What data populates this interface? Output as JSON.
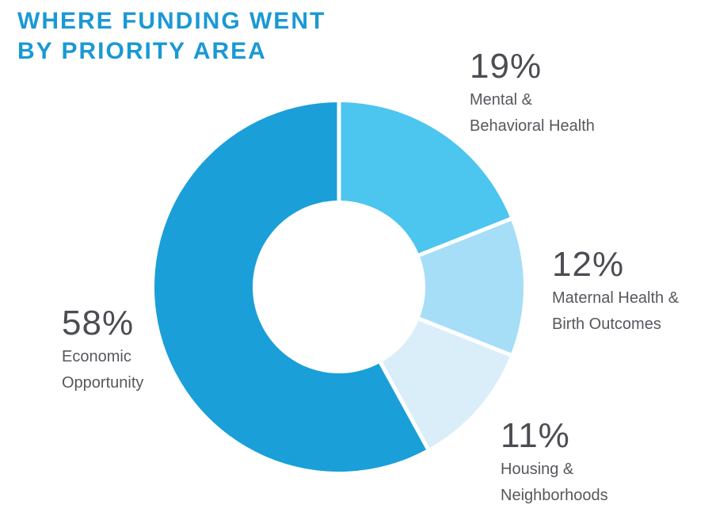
{
  "header": {
    "title_line1": "WHERE FUNDING WENT",
    "title_line2": "BY PRIORITY AREA"
  },
  "chart_data": {
    "type": "pie",
    "variant": "donut",
    "title": "WHERE FUNDING WENT BY PRIORITY AREA",
    "units": "percent of funding",
    "total": 100,
    "start_angle_deg": 0,
    "direction": "clockwise",
    "legend": "none",
    "label_style": "outside callouts with large percentage",
    "slices": [
      {
        "label": "Mental & Behavioral Health",
        "label_lines": "Mental &\nBehavioral Health",
        "value": 19,
        "pct": "19%",
        "color": "#4cc5ef"
      },
      {
        "label": "Maternal Health & Birth Outcomes",
        "label_lines": "Maternal Health &\nBirth Outcomes",
        "value": 12,
        "pct": "12%",
        "color": "#a6def7"
      },
      {
        "label": "Housing & Neighborhoods",
        "label_lines": "Housing &\nNeighborhoods",
        "value": 11,
        "pct": "11%",
        "color": "#daeefa"
      },
      {
        "label": "Economic Opportunity",
        "label_lines": "Economic\nOpportunity",
        "value": 58,
        "pct": "58%",
        "color": "#1a9fd9"
      }
    ],
    "colors": {
      "title_color": "#1a99d4",
      "percent_text": "#4b4d52",
      "label_text": "#56585d",
      "slice_gap": "#ffffff"
    }
  }
}
